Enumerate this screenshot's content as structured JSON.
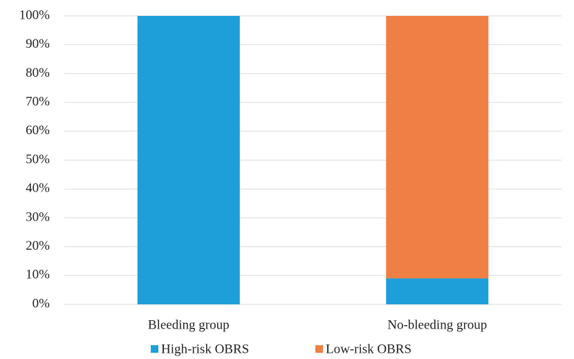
{
  "chart_data": {
    "type": "stacked_bar",
    "categories": [
      "Bleeding group",
      "No-bleeding group"
    ],
    "series": [
      {
        "name": "High-risk OBRS",
        "color": "#1f9fd9",
        "values": [
          100,
          9
        ]
      },
      {
        "name": "Low-risk OBRS",
        "color": "#f07f45",
        "values": [
          0,
          91
        ]
      }
    ],
    "ylim": [
      0,
      100
    ],
    "yticks": [
      {
        "value": 0,
        "label": "0%"
      },
      {
        "value": 10,
        "label": "10%"
      },
      {
        "value": 20,
        "label": "20%"
      },
      {
        "value": 30,
        "label": "30%"
      },
      {
        "value": 40,
        "label": "40%"
      },
      {
        "value": 50,
        "label": "50%"
      },
      {
        "value": 60,
        "label": "60%"
      },
      {
        "value": 70,
        "label": "70%"
      },
      {
        "value": 80,
        "label": "80%"
      },
      {
        "value": 90,
        "label": "90%"
      },
      {
        "value": 100,
        "label": "100%"
      }
    ],
    "grid": true,
    "legend": "bottom"
  }
}
